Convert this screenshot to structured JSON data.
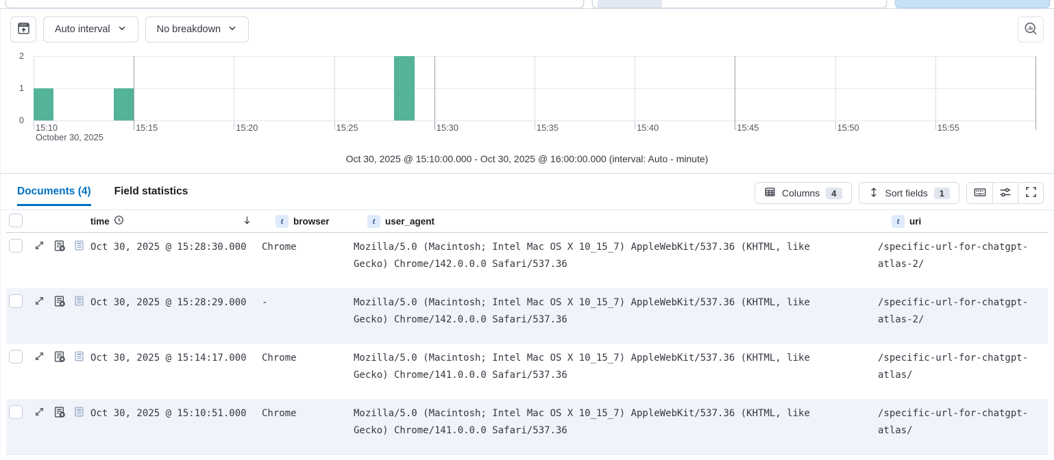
{
  "chart_toolbar": {
    "interval_label": "Auto interval",
    "breakdown_label": "No breakdown",
    "icons": {
      "left_button": "chart-options-icon",
      "right_button": "magnifier-chart-icon"
    }
  },
  "chart_data": {
    "type": "bar",
    "title": "",
    "xlabel": "",
    "ylabel": "",
    "x_ticks": [
      "15:10",
      "15:15",
      "15:20",
      "15:25",
      "15:30",
      "15:35",
      "15:40",
      "15:45",
      "15:50",
      "15:55"
    ],
    "x_tick_minute_offsets": [
      0,
      5,
      10,
      15,
      20,
      25,
      30,
      35,
      40,
      45
    ],
    "x_range_minutes": 50,
    "x_date_label": "October 30, 2025",
    "y_ticks": [
      0,
      1,
      2
    ],
    "ylim": [
      0,
      2
    ],
    "grid": true,
    "bar_color": "#54b399",
    "bars": [
      {
        "time": "15:10",
        "minute_offset": 0,
        "value": 1
      },
      {
        "time": "15:14",
        "minute_offset": 4,
        "value": 1
      },
      {
        "time": "15:28",
        "minute_offset": 18,
        "value": 2
      }
    ],
    "caption": "Oct 30, 2025 @ 15:10:00.000 - Oct 30, 2025 @ 16:00:00.000 (interval: Auto - minute)"
  },
  "tabs": [
    {
      "label": "Documents (4)",
      "active": true
    },
    {
      "label": "Field statistics",
      "active": false
    }
  ],
  "toolbar": {
    "columns_label": "Columns",
    "columns_count": "4",
    "sort_label": "Sort fields",
    "sort_count": "1",
    "icons": [
      "keyboard-icon",
      "sliders-icon",
      "fullscreen-icon"
    ]
  },
  "table": {
    "type_badge": "t",
    "headers": {
      "time": "time",
      "browser": "browser",
      "user_agent": "user_agent",
      "uri": "uri"
    },
    "rows": [
      {
        "time": "Oct 30, 2025 @ 15:28:30.000",
        "browser": "Chrome",
        "user_agent": "Mozilla/5.0 (Macintosh; Intel Mac OS X 10_15_7) AppleWebKit/537.36 (KHTML, like Gecko) Chrome/142.0.0.0 Safari/537.36",
        "uri": "/specific-url-for-chatgpt-atlas-2/"
      },
      {
        "time": "Oct 30, 2025 @ 15:28:29.000",
        "browser": "-",
        "user_agent": "Mozilla/5.0 (Macintosh; Intel Mac OS X 10_15_7) AppleWebKit/537.36 (KHTML, like Gecko) Chrome/142.0.0.0 Safari/537.36",
        "uri": "/specific-url-for-chatgpt-atlas-2/"
      },
      {
        "time": "Oct 30, 2025 @ 15:14:17.000",
        "browser": "Chrome",
        "user_agent": "Mozilla/5.0 (Macintosh; Intel Mac OS X 10_15_7) AppleWebKit/537.36 (KHTML, like Gecko) Chrome/141.0.0.0 Safari/537.36",
        "uri": "/specific-url-for-chatgpt-atlas/"
      },
      {
        "time": "Oct 30, 2025 @ 15:10:51.000",
        "browser": "Chrome",
        "user_agent": "Mozilla/5.0 (Macintosh; Intel Mac OS X 10_15_7) AppleWebKit/537.36 (KHTML, like Gecko) Chrome/141.0.0.0 Safari/537.36",
        "uri": "/specific-url-for-chatgpt-atlas/"
      }
    ]
  }
}
